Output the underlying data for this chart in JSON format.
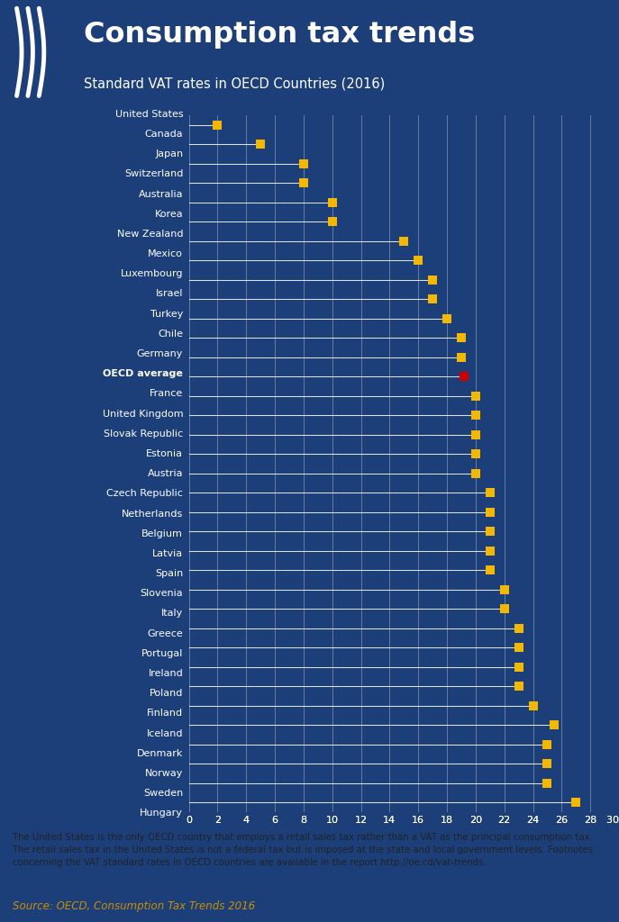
{
  "title": "Consumption tax trends",
  "subtitle": "Standard VAT rates in OECD Countries (2016)",
  "countries": [
    "United States",
    "Canada",
    "Japan",
    "Switzerland",
    "Australia",
    "Korea",
    "New Zealand",
    "Mexico",
    "Luxembourg",
    "Israel",
    "Turkey",
    "Chile",
    "Germany",
    "OECD average",
    "France",
    "United Kingdom",
    "Slovak Republic",
    "Estonia",
    "Austria",
    "Czech Republic",
    "Netherlands",
    "Belgium",
    "Latvia",
    "Spain",
    "Slovenia",
    "Italy",
    "Greece",
    "Portugal",
    "Ireland",
    "Poland",
    "Finland",
    "Iceland",
    "Denmark",
    "Norway",
    "Sweden",
    "Hungary"
  ],
  "values": [
    2,
    5,
    8,
    8,
    10,
    10,
    15,
    16,
    17,
    17,
    18,
    19,
    19,
    19.2,
    20,
    20,
    20,
    20,
    20,
    21,
    21,
    21,
    21,
    21,
    22,
    22,
    23,
    23,
    23,
    23,
    24,
    25.5,
    25,
    25,
    25,
    27
  ],
  "bar_color": "#F5B800",
  "oecd_bar_color": "#CC0000",
  "bg_color": "#1C3F7A",
  "text_color": "#FFFFFF",
  "header_bg": "#F5B800",
  "footer_bg": "#F0ECD5",
  "xlim": [
    0,
    30
  ],
  "xticks": [
    0,
    2,
    4,
    6,
    8,
    10,
    12,
    14,
    16,
    18,
    20,
    22,
    24,
    26,
    28,
    30
  ],
  "footnote": "The United States is the only OECD country that employs a retail sales tax rather than a VAT as the principal consumption tax.\nThe retail sales tax in the United States is not a federal tax but is imposed at the state and local government levels. Footnotes\nconcerning the VAT standard rates in OECD countries are available in the report http://oe.cd/vat-trends.",
  "source": "Source: OECD, Consumption Tax Trends 2016"
}
